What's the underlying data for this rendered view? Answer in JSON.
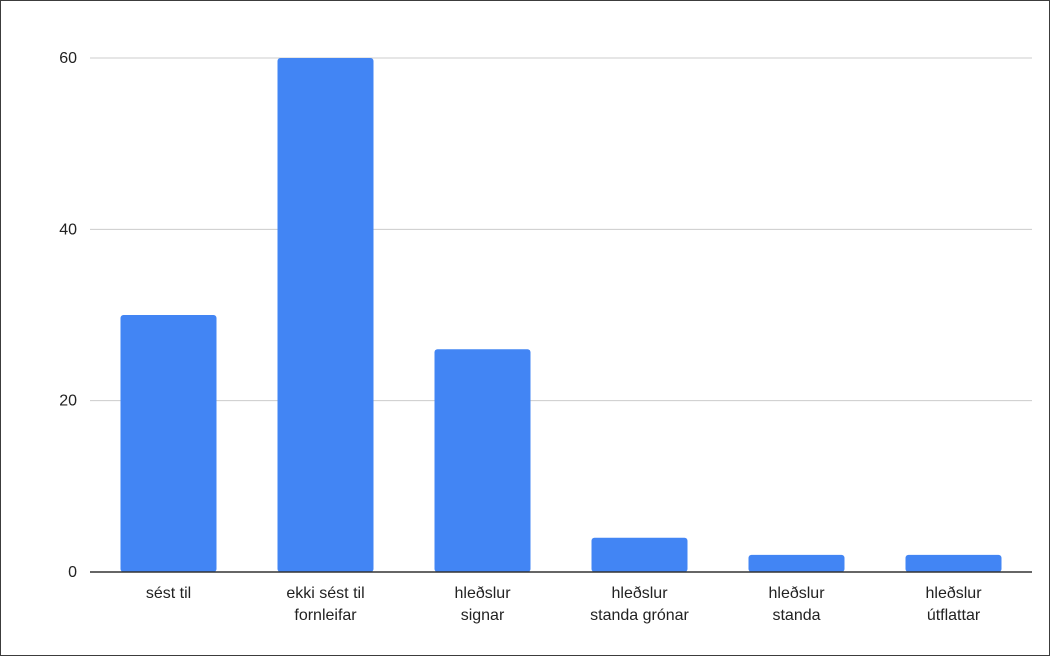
{
  "chart_data": {
    "type": "bar",
    "title": "",
    "xlabel": "",
    "ylabel": "",
    "categories": [
      [
        "sést til"
      ],
      [
        "ekki sést til",
        "fornleifar"
      ],
      [
        "hleðslur",
        "signar"
      ],
      [
        "hleðslur",
        "standa grónar"
      ],
      [
        "hleðslur",
        "standa"
      ],
      [
        "hleðslur",
        "útflattar"
      ]
    ],
    "values": [
      30,
      60,
      26,
      4,
      2,
      2
    ],
    "ylim": [
      0,
      60
    ],
    "yticks": [
      0,
      20,
      40,
      60
    ],
    "grid": true,
    "legend": "none",
    "colors": {
      "bar": "#4285f4",
      "grid": "#cccccc",
      "axis": "#333333",
      "text": "#222222"
    }
  }
}
